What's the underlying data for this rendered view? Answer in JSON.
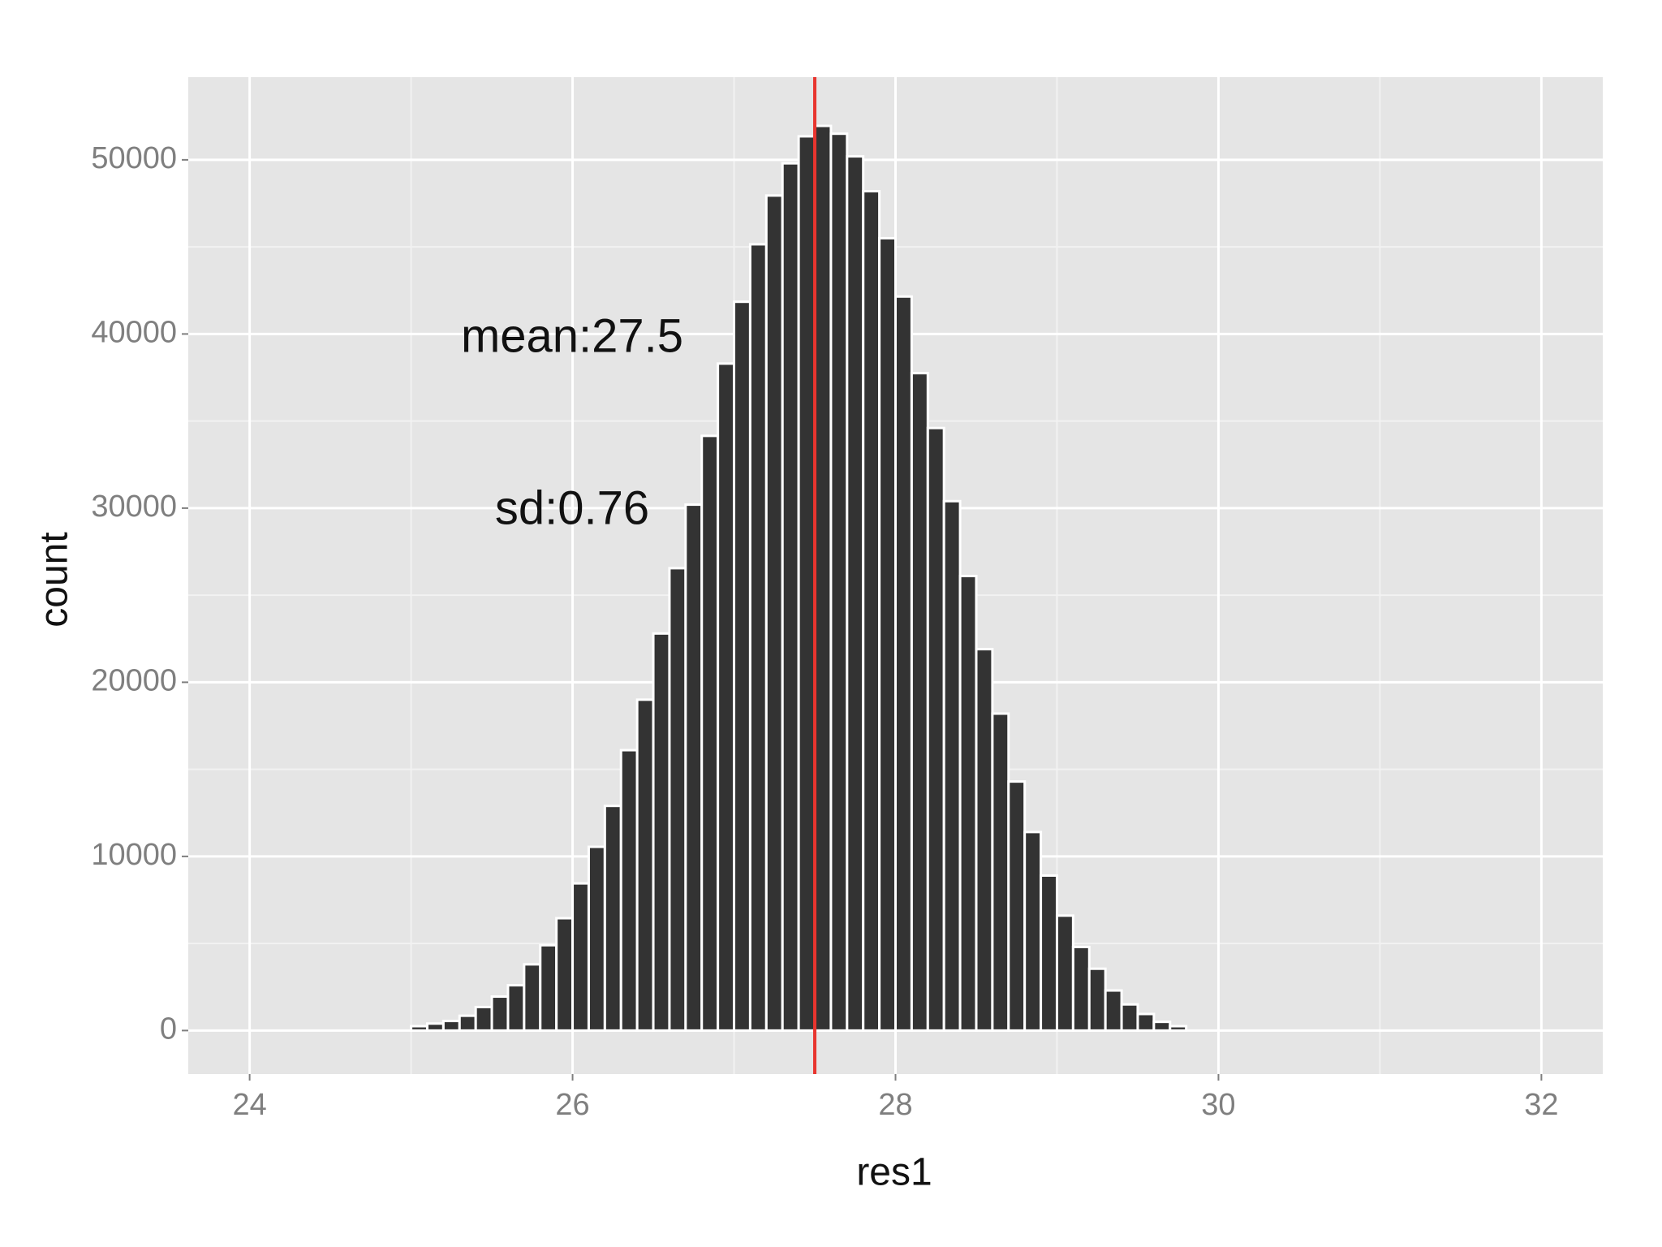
{
  "chart_data": {
    "type": "histogram",
    "x_label": "res1",
    "y_label": "count",
    "annotations": [
      "mean:27.5",
      "sd:0.76"
    ],
    "bins": [
      25.0,
      25.1,
      25.2,
      25.3,
      25.4,
      25.5,
      25.6,
      25.7,
      25.8,
      25.9,
      26.0,
      26.1,
      26.2,
      26.3,
      26.4,
      26.5,
      26.6,
      26.7,
      26.8,
      26.9,
      27.0,
      27.1,
      27.2,
      27.3,
      27.4,
      27.5,
      27.6,
      27.7,
      27.8,
      27.9,
      28.0,
      28.1,
      28.2,
      28.3,
      28.4,
      28.5,
      28.6,
      28.7,
      28.8,
      28.9,
      29.0,
      29.1,
      29.2,
      29.3,
      29.4,
      29.5,
      29.6,
      29.7,
      29.8
    ],
    "values": [
      250,
      400,
      550,
      850,
      1350,
      1950,
      2600,
      3800,
      4900,
      6450,
      8450,
      10550,
      12900,
      16100,
      19000,
      22800,
      26550,
      30200,
      34150,
      38300,
      41850,
      45150,
      47950,
      49800,
      51350,
      51950,
      51500,
      50200,
      48200,
      45500,
      42150,
      37750,
      34600,
      30400,
      26100,
      21900,
      18200,
      14300,
      11400,
      8900,
      6600,
      4800,
      3550,
      2300,
      1500,
      950,
      500,
      250
    ],
    "color": "#333333",
    "vline": 27.5,
    "vline_color": "#e8352f",
    "xlim": [
      23.62,
      32.38
    ],
    "xticks": [
      24,
      26,
      28,
      30,
      32
    ],
    "ylim": [
      -2500,
      54750
    ],
    "yticks": [
      0,
      10000,
      20000,
      30000,
      40000,
      50000
    ],
    "grid": true
  }
}
